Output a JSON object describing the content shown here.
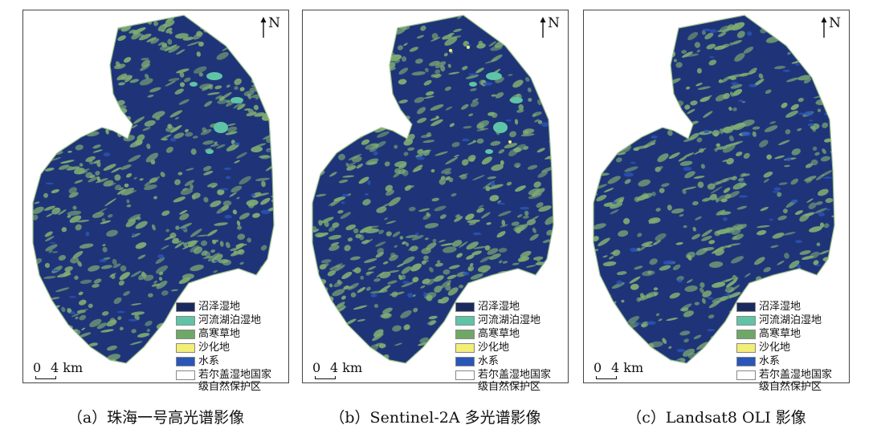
{
  "panels": [
    {
      "caption": "（a）珠海一号高光谱影像",
      "north": "N",
      "scale": {
        "zero": "0",
        "distance": "4 km"
      },
      "variant": 0
    },
    {
      "caption": "（b）Sentinel-2A 多光谱影像",
      "north": "N",
      "scale": {
        "zero": "0",
        "distance": "4 km"
      },
      "variant": 1
    },
    {
      "caption": "（c）Landsat8 OLI 影像",
      "north": "N",
      "scale": {
        "zero": "0",
        "distance": "4 km"
      },
      "variant": 2
    }
  ],
  "legend": [
    {
      "label": "沼泽湿地",
      "color": "#1b2a5e"
    },
    {
      "label": "河流湖泊湿地",
      "color": "#5fc4a6"
    },
    {
      "label": "高寒草地",
      "color": "#6fa866"
    },
    {
      "label": "沙化地",
      "color": "#f2ee78"
    },
    {
      "label": "水系",
      "color": "#2a56b8"
    },
    {
      "label": "若尔盖湿地国家级自然保护区",
      "color": "#ffffff"
    }
  ],
  "colors": {
    "marsh": "#1f3478",
    "grass": "#7fae73",
    "lake": "#5fc4a6",
    "water": "#2a56b8",
    "sand": "#f2ee78"
  }
}
